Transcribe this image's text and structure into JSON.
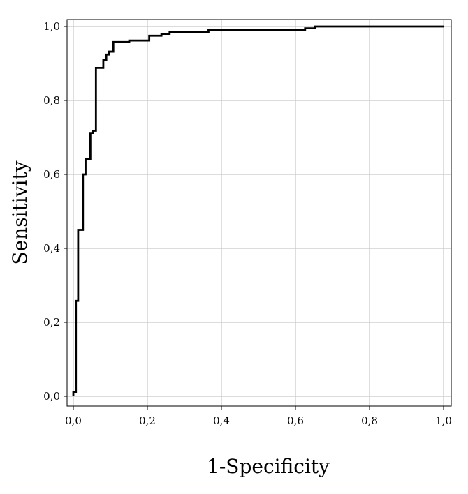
{
  "chart_data": {
    "type": "line",
    "title": "",
    "xlabel": "1-Specificity",
    "ylabel": "Sensitivity",
    "xlim": [
      0,
      1
    ],
    "ylim": [
      0,
      1
    ],
    "grid": true,
    "legend": "none",
    "x_ticks": [
      0,
      0.2,
      0.4,
      0.6,
      0.8,
      1.0
    ],
    "x_tick_labels": [
      "0,0",
      "0,2",
      "0,4",
      "0,6",
      "0,8",
      "1,0"
    ],
    "y_ticks": [
      0,
      0.2,
      0.4,
      0.6,
      0.8,
      1.0
    ],
    "y_tick_labels": [
      "0,0",
      "0,2",
      "0,4",
      "0,6",
      "0,8",
      "1,0"
    ],
    "line_color": "#000000",
    "grid_color": "#c8c8c8",
    "series": [
      {
        "x": [
          0,
          0,
          0.007,
          0.007,
          0.013,
          0.013,
          0.026,
          0.026,
          0.033,
          0.033,
          0.046,
          0.046,
          0.053,
          0.053,
          0.061,
          0.061,
          0.066,
          0.066,
          0.081,
          0.081,
          0.089,
          0.089,
          0.097,
          0.097,
          0.108,
          0.108,
          0.151,
          0.151,
          0.205,
          0.205,
          0.238,
          0.238,
          0.26,
          0.26,
          0.365,
          0.365,
          0.626,
          0.626,
          0.653,
          0.653,
          1.0
        ],
        "y": [
          0,
          0.012,
          0.012,
          0.258,
          0.258,
          0.45,
          0.45,
          0.6,
          0.6,
          0.642,
          0.642,
          0.712,
          0.712,
          0.718,
          0.718,
          0.888,
          0.888,
          0.888,
          0.888,
          0.91,
          0.91,
          0.924,
          0.924,
          0.932,
          0.932,
          0.958,
          0.958,
          0.962,
          0.962,
          0.975,
          0.975,
          0.98,
          0.98,
          0.985,
          0.985,
          0.99,
          0.99,
          0.995,
          0.995,
          1.0,
          1.0
        ]
      }
    ]
  }
}
